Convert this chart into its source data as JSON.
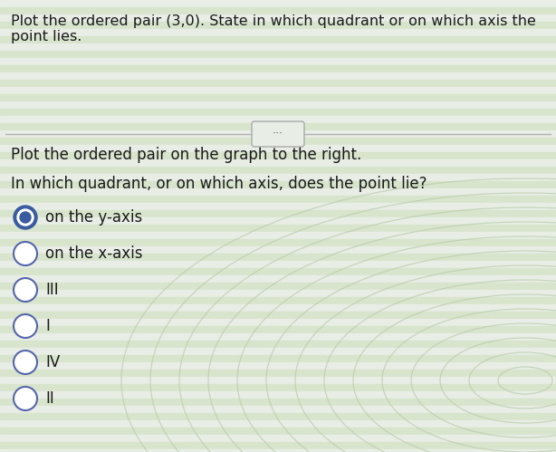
{
  "title_text": "Plot the ordered pair (3,0). State in which quadrant or on which axis the\npoint lies.",
  "subtitle1": "Plot the ordered pair on the graph to the right.",
  "subtitle2": "In which quadrant, or on which axis, does the point lie?",
  "options": [
    {
      "label": "on the y-axis",
      "selected": true
    },
    {
      "label": "on the x-axis",
      "selected": false
    },
    {
      "label": "III",
      "selected": false
    },
    {
      "label": "I",
      "selected": false
    },
    {
      "label": "IV",
      "selected": false
    },
    {
      "label": "II",
      "selected": false
    }
  ],
  "bg_stripe_light": "#e8ede6",
  "bg_stripe_dark": "#d8e4cc",
  "text_color": "#1a1a1a",
  "selected_outer_color": "#3a5ba0",
  "selected_inner_color": "#3a5ba0",
  "radio_outline_color": "#5566aa",
  "divider_color": "#b0b0b0",
  "btn_color": "#c8c8c8",
  "title_fontsize": 11.5,
  "option_fontsize": 12,
  "subtitle_fontsize": 12
}
